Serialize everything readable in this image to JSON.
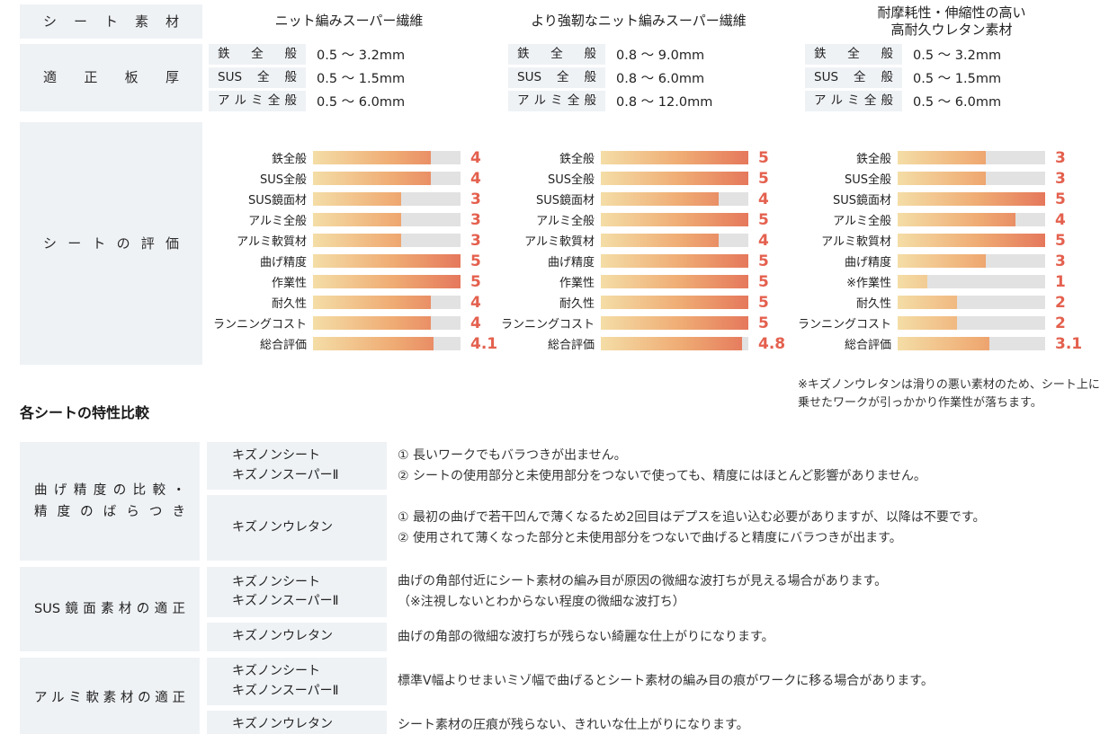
{
  "header": {
    "sheet_material_label": "シート素材",
    "thickness_label": "適正板厚",
    "evaluation_label": "シートの評価"
  },
  "materials": [
    {
      "title_lines": [
        "ニット編みスーパー繊維"
      ],
      "thickness": [
        {
          "label": "鉄全般",
          "value": "0.5 〜 3.2mm"
        },
        {
          "label": "SUS全般",
          "value": "0.5 〜 1.5mm"
        },
        {
          "label": "アルミ全般",
          "value": "0.5 〜 6.0mm"
        }
      ],
      "evaluation": [
        {
          "label": "鉄全般",
          "value": 4
        },
        {
          "label": "SUS全般",
          "value": 4
        },
        {
          "label": "SUS鏡面材",
          "value": 3
        },
        {
          "label": "アルミ全般",
          "value": 3
        },
        {
          "label": "アルミ軟質材",
          "value": 3
        },
        {
          "label": "曲げ精度",
          "value": 5
        },
        {
          "label": "作業性",
          "value": 5
        },
        {
          "label": "耐久性",
          "value": 4
        },
        {
          "label": "ランニングコスト",
          "value": 4
        },
        {
          "label": "総合評価",
          "value": 4.1
        }
      ]
    },
    {
      "title_lines": [
        "より強靭なニット編みスーパー繊維"
      ],
      "thickness": [
        {
          "label": "鉄全般",
          "value": "0.8 〜 9.0mm"
        },
        {
          "label": "SUS全般",
          "value": "0.8 〜 6.0mm"
        },
        {
          "label": "アルミ全般",
          "value": "0.8 〜 12.0mm"
        }
      ],
      "evaluation": [
        {
          "label": "鉄全般",
          "value": 5
        },
        {
          "label": "SUS全般",
          "value": 5
        },
        {
          "label": "SUS鏡面材",
          "value": 4
        },
        {
          "label": "アルミ全般",
          "value": 5
        },
        {
          "label": "アルミ軟質材",
          "value": 4
        },
        {
          "label": "曲げ精度",
          "value": 5
        },
        {
          "label": "作業性",
          "value": 5
        },
        {
          "label": "耐久性",
          "value": 5
        },
        {
          "label": "ランニングコスト",
          "value": 5
        },
        {
          "label": "総合評価",
          "value": 4.8
        }
      ]
    },
    {
      "title_lines": [
        "耐摩耗性・伸縮性の高い",
        "高耐久ウレタン素材"
      ],
      "thickness": [
        {
          "label": "鉄全般",
          "value": "0.5 〜 3.2mm"
        },
        {
          "label": "SUS全般",
          "value": "0.5 〜 1.5mm"
        },
        {
          "label": "アルミ全般",
          "value": "0.5 〜 6.0mm"
        }
      ],
      "evaluation": [
        {
          "label": "鉄全般",
          "value": 3
        },
        {
          "label": "SUS全般",
          "value": 3
        },
        {
          "label": "SUS鏡面材",
          "value": 5
        },
        {
          "label": "アルミ全般",
          "value": 4
        },
        {
          "label": "アルミ軟質材",
          "value": 5
        },
        {
          "label": "曲げ精度",
          "value": 3
        },
        {
          "label": "※作業性",
          "value": 1
        },
        {
          "label": "耐久性",
          "value": 2
        },
        {
          "label": "ランニングコスト",
          "value": 2
        },
        {
          "label": "総合評価",
          "value": 3.1
        }
      ]
    }
  ],
  "note": "※キズノンウレタンは滑りの悪い素材のため、シート上に乗せたワークが引っかかり作業性が落ちます。",
  "comparison": {
    "title": "各シートの特性比較",
    "rows": [
      {
        "left_lines": [
          "曲げ精度の比較・",
          "精度のばらつき"
        ],
        "subrows": [
          {
            "sheet_lines": [
              "キズノンシート",
              "キズノンスーパーⅡ"
            ],
            "desc_lines": [
              "① 長いワークでもバラつきが出ません。",
              "② シートの使用部分と未使用部分をつないで使っても、精度にはほとんど影響がありません。"
            ]
          },
          {
            "sheet_lines": [
              "キズノンウレタン"
            ],
            "desc_lines": [
              "① 最初の曲げで若干凹んで薄くなるため2回目はデプスを追い込む必要がありますが、以降は不要です。",
              "② 使用されて薄くなった部分と未使用部分をつないで曲げると精度にバラつきが出ます。"
            ]
          }
        ]
      },
      {
        "left_lines": [
          "SUS鏡面素材の適正"
        ],
        "subrows": [
          {
            "sheet_lines": [
              "キズノンシート",
              "キズノンスーパーⅡ"
            ],
            "desc_lines": [
              "曲げの角部付近にシート素材の編み目が原因の微細な波打ちが見える場合があります。",
              "（※注視しないとわからない程度の微細な波打ち）"
            ]
          },
          {
            "sheet_lines": [
              "キズノンウレタン"
            ],
            "desc_lines": [
              "曲げの角部の微細な波打ちが残らない綺麗な仕上がりになります。"
            ]
          }
        ]
      },
      {
        "left_lines": [
          "アルミ軟素材の適正"
        ],
        "subrows": [
          {
            "sheet_lines": [
              "キズノンシート",
              "キズノンスーパーⅡ"
            ],
            "desc_lines": [
              "標準V幅よりせまいミゾ幅で曲げるとシート素材の編み目の痕がワークに移る場合があります。"
            ]
          },
          {
            "sheet_lines": [
              "キズノンウレタン"
            ],
            "desc_lines": [
              "シート素材の圧痕が残らない、きれいな仕上がりになります。"
            ]
          }
        ]
      }
    ]
  },
  "colors": {
    "accent_number": "#e4604e",
    "bar_gradient_start": "#f4dda6",
    "bar_gradient_end": "#e5785c",
    "bar_track": "#e2e2e2",
    "cell_background": "#eff2f5"
  },
  "chart_data": [
    {
      "type": "bar",
      "title": "ニット編みスーパー繊維 シートの評価",
      "categories": [
        "鉄全般",
        "SUS全般",
        "SUS鏡面材",
        "アルミ全般",
        "アルミ軟質材",
        "曲げ精度",
        "作業性",
        "耐久性",
        "ランニングコスト",
        "総合評価"
      ],
      "values": [
        4,
        4,
        3,
        3,
        3,
        5,
        5,
        4,
        4,
        4.1
      ],
      "xlabel": "",
      "ylabel": "",
      "xlim": [
        0,
        5
      ],
      "orientation": "horizontal",
      "grid": false,
      "legend": false
    },
    {
      "type": "bar",
      "title": "より強靭なニット編みスーパー繊維 シートの評価",
      "categories": [
        "鉄全般",
        "SUS全般",
        "SUS鏡面材",
        "アルミ全般",
        "アルミ軟質材",
        "曲げ精度",
        "作業性",
        "耐久性",
        "ランニングコスト",
        "総合評価"
      ],
      "values": [
        5,
        5,
        4,
        5,
        4,
        5,
        5,
        5,
        5,
        4.8
      ],
      "xlabel": "",
      "ylabel": "",
      "xlim": [
        0,
        5
      ],
      "orientation": "horizontal",
      "grid": false,
      "legend": false
    },
    {
      "type": "bar",
      "title": "耐摩耗性・伸縮性の高い高耐久ウレタン素材 シートの評価",
      "categories": [
        "鉄全般",
        "SUS全般",
        "SUS鏡面材",
        "アルミ全般",
        "アルミ軟質材",
        "曲げ精度",
        "※作業性",
        "耐久性",
        "ランニングコスト",
        "総合評価"
      ],
      "values": [
        3,
        3,
        5,
        4,
        5,
        3,
        1,
        2,
        2,
        3.1
      ],
      "xlabel": "",
      "ylabel": "",
      "xlim": [
        0,
        5
      ],
      "orientation": "horizontal",
      "grid": false,
      "legend": false
    }
  ]
}
